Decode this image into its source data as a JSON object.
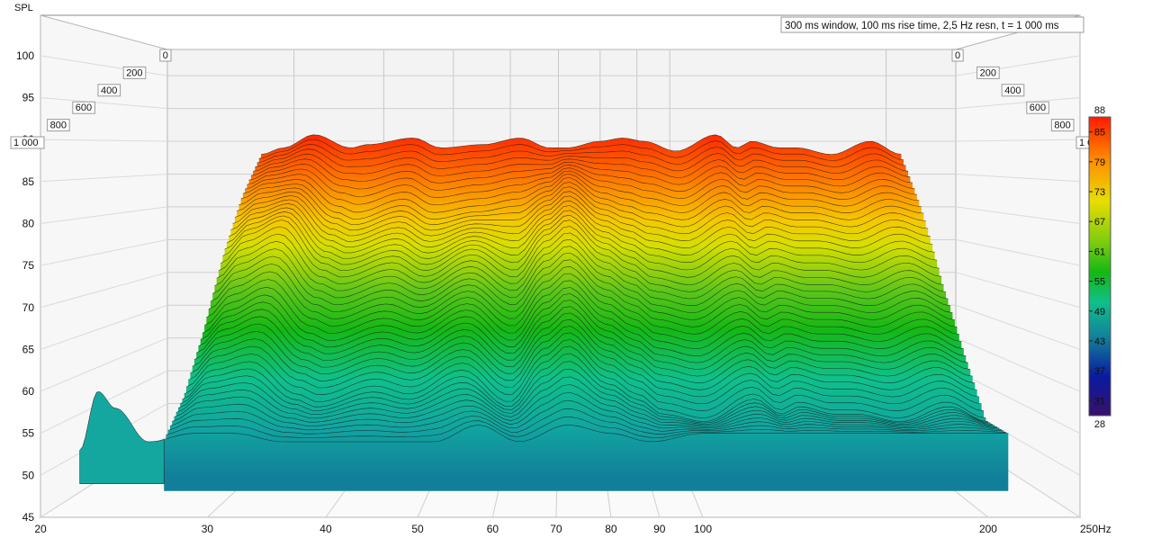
{
  "chart_data": {
    "type": "waterfall-3d",
    "title_box": "300 ms window, 100 ms rise time,  2,5 Hz resn, t = 1 000 ms",
    "ylabel": "SPL",
    "xunit": "Hz",
    "x_scale": "log",
    "xlim": [
      20,
      250
    ],
    "ylim": [
      45,
      104
    ],
    "x_ticks": [
      20,
      30,
      40,
      50,
      60,
      70,
      80,
      90,
      100,
      200,
      250
    ],
    "x_tick_labels": [
      "20",
      "30",
      "40",
      "50",
      "60",
      "70",
      "80",
      "90",
      "100",
      "200",
      "250Hz"
    ],
    "y_ticks": [
      45,
      50,
      55,
      60,
      65,
      70,
      75,
      80,
      85,
      90,
      95,
      100
    ],
    "y_tick_labels": [
      "45",
      "50",
      "55",
      "60",
      "65",
      "70",
      "75",
      "80",
      "85",
      "90",
      "95",
      "100"
    ],
    "time_ticks": [
      0,
      200,
      400,
      600,
      800,
      1000
    ],
    "time_tick_labels": [
      "0",
      "200",
      "400",
      "600",
      "800",
      "1 000"
    ],
    "time_unit": "ms",
    "colorbar": {
      "min": 28,
      "max": 88,
      "ticks": [
        "88",
        "85",
        "79",
        "73",
        "67",
        "61",
        "55",
        "49",
        "43",
        "37",
        "31",
        "28"
      ],
      "stops": [
        "#ff1a00",
        "#ff8a00",
        "#e8dd00",
        "#14b814",
        "#10c08a",
        "#127f9a",
        "#0a1aa0",
        "#38106a"
      ]
    },
    "series": [
      {
        "time_ms": 0,
        "frequency": [
          27,
          29,
          32,
          36,
          38,
          44,
          48,
          55,
          62,
          68,
          72,
          80,
          86,
          92,
          102,
          116,
          124,
          130,
          142,
          150,
          168,
          190,
          210
        ],
        "spl": [
          88,
          89,
          91,
          89,
          89.5,
          90.5,
          89,
          89.5,
          90.5,
          89,
          89,
          90,
          90.5,
          90,
          88.5,
          91,
          89,
          90,
          89,
          89,
          88,
          90,
          88
        ]
      },
      {
        "time_ms": 200,
        "frequency": [
          27,
          29,
          32,
          36,
          38,
          44,
          48,
          55,
          62,
          68,
          72,
          80,
          86,
          92,
          102,
          116,
          124,
          130,
          142,
          150,
          168,
          190,
          210
        ],
        "spl": [
          82,
          83.5,
          84,
          80,
          79,
          81,
          79,
          80,
          81,
          83,
          85,
          82,
          81,
          80,
          79,
          82,
          80,
          81,
          80,
          80,
          79,
          81,
          80
        ]
      },
      {
        "time_ms": 400,
        "frequency": [
          27,
          29,
          32,
          36,
          38,
          44,
          48,
          55,
          62,
          68,
          72,
          80,
          86,
          92,
          102,
          116,
          124,
          130,
          142,
          150,
          168,
          190,
          210
        ],
        "spl": [
          74,
          77,
          79,
          73,
          72,
          74,
          72,
          75,
          72,
          77,
          79,
          75,
          73,
          71,
          70,
          73,
          71,
          72,
          71,
          71,
          70,
          72,
          70
        ]
      },
      {
        "time_ms": 600,
        "frequency": [
          27,
          29,
          32,
          36,
          38,
          44,
          48,
          55,
          62,
          68,
          72,
          80,
          86,
          92,
          102,
          116,
          124,
          130,
          142,
          150,
          168,
          190,
          210
        ],
        "spl": [
          65,
          68,
          70,
          65,
          64,
          66,
          65,
          68,
          64,
          69,
          71,
          67,
          65,
          63,
          62,
          65,
          63,
          64,
          63,
          63,
          62,
          64,
          62
        ]
      },
      {
        "time_ms": 800,
        "frequency": [
          27,
          29,
          32,
          36,
          38,
          44,
          48,
          55,
          62,
          68,
          72,
          80,
          86,
          92,
          102,
          116,
          124,
          130,
          142,
          150,
          168,
          190,
          210
        ],
        "spl": [
          58,
          61,
          62,
          58,
          57,
          59,
          58,
          61,
          57,
          62,
          64,
          60,
          58,
          56,
          55,
          58,
          56,
          57,
          56,
          56,
          55,
          57,
          55
        ]
      },
      {
        "time_ms": 1000,
        "frequency": [
          22,
          23,
          24,
          26,
          29,
          32,
          36,
          40,
          46,
          52,
          58,
          64,
          72,
          80,
          88,
          100,
          120,
          150,
          200
        ],
        "spl": [
          53,
          60,
          58,
          54,
          55,
          55,
          54,
          54,
          54,
          54,
          56,
          54,
          56,
          55,
          54,
          55,
          55,
          55,
          55
        ]
      }
    ]
  }
}
